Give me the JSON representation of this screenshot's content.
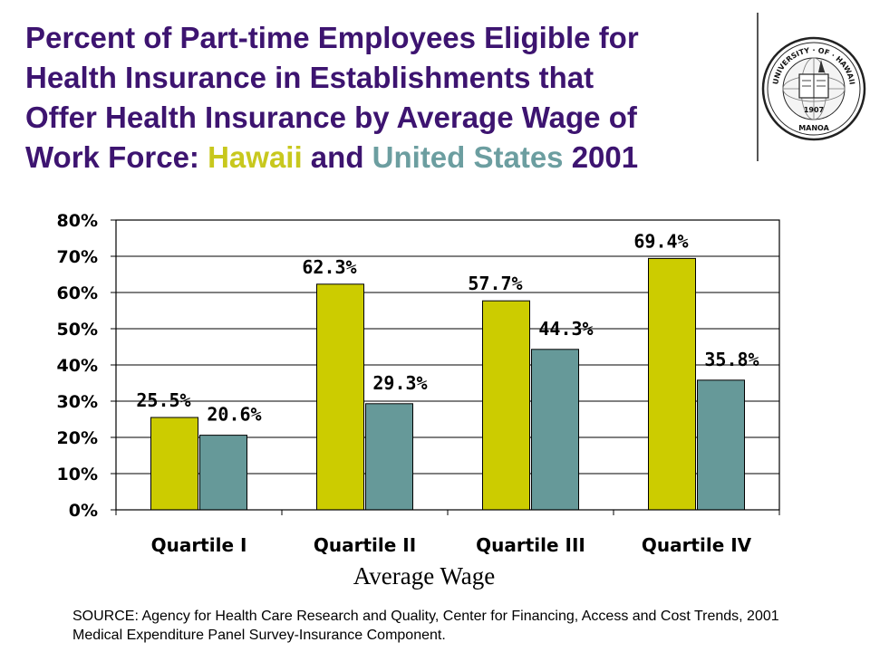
{
  "title": {
    "line1": "Percent of  Part-time Employees Eligible for",
    "line2": "Health Insurance in Establishments that",
    "line3": "Offer Health Insurance by Average Wage of",
    "line4_prefix": "Work Force: ",
    "hawaii": "Hawaii",
    "and": " and ",
    "united_states": "United States",
    "year": " 2001"
  },
  "seal": {
    "top_text": "UNIVERSITY · OF · HAWAII",
    "year": "1907",
    "bottom_text": "MANOA",
    "icon": "university-of-hawaii-seal"
  },
  "colors": {
    "title": "#3d1470",
    "hawaii": "#c8c81e",
    "united_states": "#6c9ea0"
  },
  "chart_data": {
    "type": "bar",
    "categories": [
      "Quartile I",
      "Quartile II",
      "Quartile III",
      "Quartile IV"
    ],
    "series": [
      {
        "name": "Hawaii",
        "color": "#cccc00",
        "values": [
          25.5,
          62.3,
          57.7,
          69.4
        ],
        "labels": [
          "25.5%",
          "62.3%",
          "57.7%",
          "69.4%"
        ]
      },
      {
        "name": "United States",
        "color": "#669999",
        "values": [
          20.6,
          29.3,
          44.3,
          35.8
        ],
        "labels": [
          "20.6%",
          "29.3%",
          "44.3%",
          "35.8%"
        ]
      }
    ],
    "ylim": [
      0,
      80
    ],
    "yticks": [
      0,
      10,
      20,
      30,
      40,
      50,
      60,
      70,
      80
    ],
    "ytick_labels": [
      "0%",
      "10%",
      "20%",
      "30%",
      "40%",
      "50%",
      "60%",
      "70%",
      "80%"
    ],
    "xlabel": "Average Wage",
    "ylabel": "",
    "grid": true,
    "legend": "none"
  },
  "source": "SOURCE: Agency for Health Care Research and Quality, Center for Financing, Access and Cost Trends, 2001 Medical Expenditure Panel Survey-Insurance Component."
}
